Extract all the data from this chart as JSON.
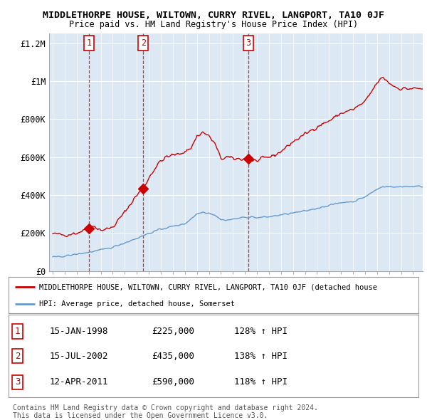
{
  "title": "MIDDLETHORPE HOUSE, WILTOWN, CURRY RIVEL, LANGPORT, TA10 0JF",
  "subtitle": "Price paid vs. HM Land Registry's House Price Index (HPI)",
  "transactions": [
    {
      "num": 1,
      "date_label": "15-JAN-1998",
      "year": 1998.04,
      "price": 225000,
      "pct": "128%",
      "dir": "↑"
    },
    {
      "num": 2,
      "date_label": "15-JUL-2002",
      "year": 2002.54,
      "price": 435000,
      "pct": "138%",
      "dir": "↑"
    },
    {
      "num": 3,
      "date_label": "12-APR-2011",
      "year": 2011.28,
      "price": 590000,
      "pct": "118%",
      "dir": "↑"
    }
  ],
  "red_line_color": "#cc0000",
  "blue_line_color": "#6699cc",
  "vline_color": "#cc0000",
  "chart_bg_color": "#dce9f5",
  "background_color": "#ffffff",
  "grid_color": "#ffffff",
  "ylim": [
    0,
    1250000
  ],
  "yticks": [
    0,
    200000,
    400000,
    600000,
    800000,
    1000000,
    1200000
  ],
  "ytick_labels": [
    "£0",
    "£200K",
    "£400K",
    "£600K",
    "£800K",
    "£1M",
    "£1.2M"
  ],
  "legend_label_red": "MIDDLETHORPE HOUSE, WILTOWN, CURRY RIVEL, LANGPORT, TA10 0JF (detached house",
  "legend_label_blue": "HPI: Average price, detached house, Somerset",
  "footer1": "Contains HM Land Registry data © Crown copyright and database right 2024.",
  "footer2": "This data is licensed under the Open Government Licence v3.0.",
  "xlim_left": 1994.7,
  "xlim_right": 2025.8
}
